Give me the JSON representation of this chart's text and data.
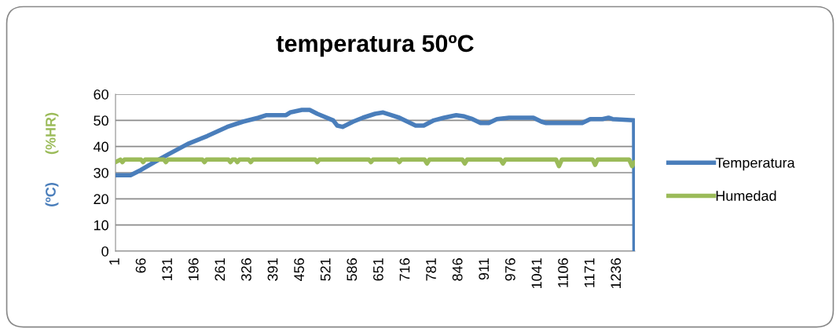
{
  "chart_data": {
    "type": "line",
    "title": "temperatura 50ºC",
    "ylabel": "(ºC)   (%HR)",
    "xlim": [
      1,
      1280
    ],
    "xticks": [
      1,
      66,
      131,
      196,
      261,
      326,
      391,
      456,
      521,
      586,
      651,
      716,
      781,
      846,
      911,
      976,
      1041,
      1106,
      1171,
      1236
    ],
    "ylim": [
      0,
      60
    ],
    "yticks": [
      0,
      10,
      20,
      30,
      40,
      50,
      60
    ],
    "grid": "y",
    "legend": "right",
    "marker": "none",
    "line_style": "solid",
    "series": [
      {
        "name": "Temperatura",
        "color": "#4a7ebb",
        "x": [
          1,
          38,
          63,
          102,
          131,
          179,
          227,
          276,
          315,
          353,
          373,
          421,
          431,
          460,
          479,
          498,
          537,
          547,
          560,
          586,
          610,
          640,
          660,
          680,
          700,
          720,
          740,
          760,
          785,
          810,
          840,
          860,
          880,
          900,
          920,
          940,
          970,
          1000,
          1030,
          1050,
          1060,
          1150,
          1170,
          1200,
          1215,
          1225,
          1278,
          1279
        ],
        "values": [
          29,
          29,
          31,
          34.5,
          37,
          41,
          44,
          47.5,
          49.5,
          51,
          52,
          52,
          53,
          54,
          54,
          52.5,
          50,
          48,
          47.5,
          49.5,
          51,
          52.5,
          53,
          52,
          51,
          49.5,
          48,
          48,
          50,
          51,
          52,
          51.5,
          50.5,
          49,
          49,
          50.5,
          51,
          51,
          51,
          49.5,
          49,
          49,
          50.5,
          50.5,
          51,
          50.5,
          50,
          0
        ]
      },
      {
        "name": "Humedad",
        "color": "#9bbb59",
        "x": [
          1,
          13,
          18,
          23,
          64,
          69,
          74,
          120,
          125,
          130,
          215,
          220,
          225,
          279,
          284,
          289,
          296,
          301,
          306,
          329,
          334,
          339,
          493,
          498,
          503,
          625,
          630,
          635,
          695,
          700,
          705,
          762,
          768,
          774,
          855,
          861,
          867,
          949,
          955,
          961,
          1086,
          1093,
          1100,
          1176,
          1182,
          1188,
          1266,
          1273,
          1279
        ],
        "values": [
          34,
          35,
          34,
          35,
          35,
          34,
          35,
          35,
          34,
          35,
          35,
          34,
          35,
          35,
          34,
          35,
          35,
          34,
          35,
          35,
          34,
          35,
          35,
          34,
          35,
          35,
          34,
          35,
          35,
          34,
          35,
          35,
          33.5,
          35,
          35,
          33.5,
          35,
          35,
          33.5,
          35,
          35,
          32.5,
          35,
          35,
          33,
          35,
          35,
          32.5,
          34
        ]
      }
    ]
  }
}
